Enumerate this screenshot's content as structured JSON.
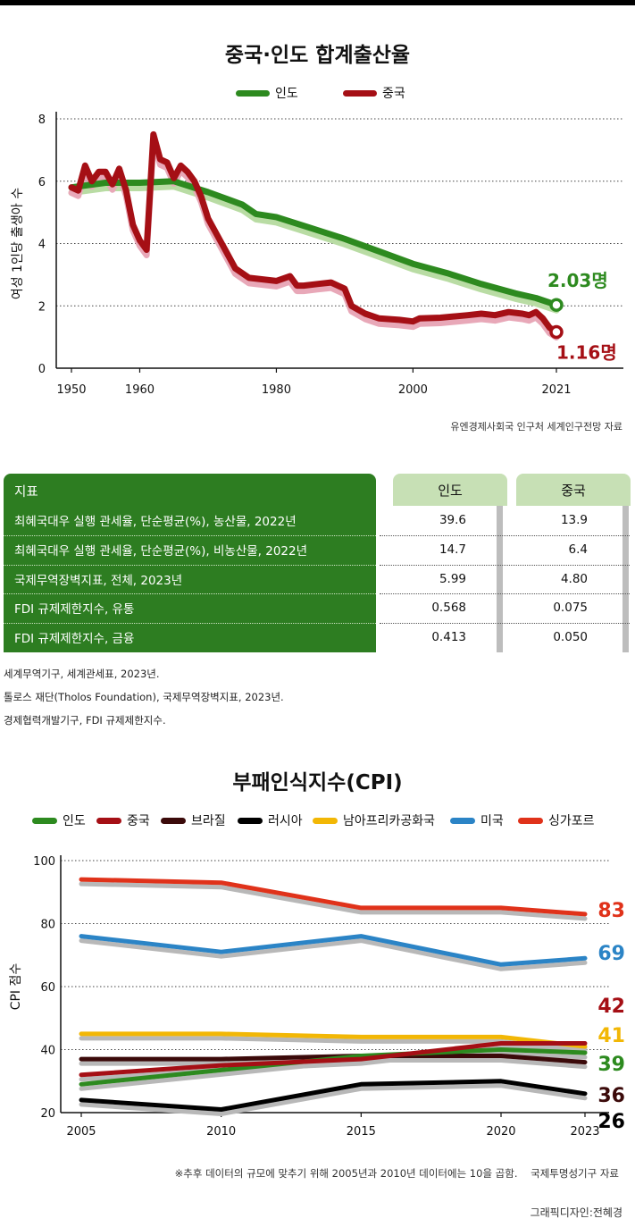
{
  "colors": {
    "india": "#2d8a1f",
    "china": "#a50f15",
    "brazil": "#3b0a0a",
    "russia": "#000000",
    "sa": "#f2b705",
    "usa": "#2b84c6",
    "singapore": "#e0321a",
    "table_green": "#2d7d21"
  },
  "chart1": {
    "title": "중국·인도 합계출산율",
    "ylabel": "여성 1인당 출생아 수",
    "legend": [
      "인도",
      "중국"
    ],
    "end_labels": {
      "india": "2.03명",
      "china": "1.16명"
    },
    "source": "유엔경제사회국 인구처 세계인구전망 자료"
  },
  "chart_data": [
    {
      "type": "line",
      "title": "중국·인도 합계출산율",
      "ylabel": "여성 1인당 출생아 수",
      "xlabel": "",
      "xticks": [
        1950,
        1960,
        1980,
        2000,
        2021
      ],
      "yticks": [
        0,
        2,
        4,
        6,
        8
      ],
      "xlim": [
        1948,
        2030
      ],
      "ylim": [
        0,
        8
      ],
      "grid": "horizontal dotted",
      "legend_position": "top",
      "series": [
        {
          "name": "인도",
          "x": [
            1950,
            1955,
            1960,
            1965,
            1970,
            1975,
            1977,
            1980,
            1985,
            1990,
            1995,
            2000,
            2005,
            2010,
            2015,
            2018,
            2021
          ],
          "values": [
            5.8,
            5.95,
            5.95,
            6.0,
            5.65,
            5.25,
            4.95,
            4.85,
            4.5,
            4.15,
            3.75,
            3.35,
            3.05,
            2.7,
            2.4,
            2.25,
            2.03
          ]
        },
        {
          "name": "중국",
          "x": [
            1950,
            1951,
            1952,
            1953,
            1954,
            1955,
            1956,
            1957,
            1958,
            1959,
            1960,
            1961,
            1962,
            1963,
            1964,
            1965,
            1966,
            1967,
            1968,
            1969,
            1970,
            1972,
            1974,
            1976,
            1978,
            1980,
            1982,
            1983,
            1984,
            1986,
            1988,
            1990,
            1991,
            1993,
            1995,
            1998,
            2000,
            2001,
            2004,
            2008,
            2010,
            2012,
            2014,
            2016,
            2017,
            2018,
            2019,
            2020,
            2021
          ],
          "values": [
            5.8,
            5.7,
            6.5,
            6.0,
            6.3,
            6.3,
            5.9,
            6.4,
            5.7,
            4.6,
            4.1,
            3.8,
            7.5,
            6.7,
            6.6,
            6.1,
            6.5,
            6.3,
            6.0,
            5.5,
            4.8,
            4.0,
            3.2,
            2.9,
            2.85,
            2.8,
            2.95,
            2.65,
            2.65,
            2.7,
            2.75,
            2.55,
            2.0,
            1.75,
            1.6,
            1.55,
            1.5,
            1.6,
            1.62,
            1.7,
            1.75,
            1.7,
            1.8,
            1.75,
            1.7,
            1.8,
            1.6,
            1.3,
            1.16
          ]
        }
      ]
    },
    {
      "type": "line",
      "title": "부패인식지수(CPI)",
      "ylabel": "CPI 점수",
      "xlabel": "",
      "x": [
        2005,
        2010,
        2015,
        2020,
        2023
      ],
      "yticks": [
        20,
        40,
        60,
        80,
        100
      ],
      "ylim": [
        20,
        100
      ],
      "grid": "horizontal dotted",
      "legend_position": "top",
      "series": [
        {
          "name": "인도",
          "values": [
            29,
            33.5,
            38,
            40,
            39
          ]
        },
        {
          "name": "중국",
          "values": [
            32,
            35,
            37,
            42,
            42
          ]
        },
        {
          "name": "브라질",
          "values": [
            37,
            37,
            38,
            38,
            36
          ]
        },
        {
          "name": "러시아",
          "values": [
            24,
            21,
            29,
            30,
            26
          ]
        },
        {
          "name": "남아프리카공화국",
          "values": [
            45,
            45,
            44,
            44,
            41
          ]
        },
        {
          "name": "미국",
          "values": [
            76,
            71,
            76,
            67,
            69
          ]
        },
        {
          "name": "싱가포르",
          "values": [
            94,
            93,
            85,
            85,
            83
          ]
        }
      ]
    }
  ],
  "table": {
    "header": "지표",
    "col1": "인도",
    "col2": "중국",
    "rows": [
      {
        "label": "최혜국대우 실행 관세율, 단순평균(%), 농산물, 2022년",
        "india": "39.6",
        "china": "13.9"
      },
      {
        "label": "최혜국대우 실행 관세율, 단순평균(%), 비농산물, 2022년",
        "india": "14.7",
        "china": "6.4"
      },
      {
        "label": "국제무역장벽지표, 전체, 2023년",
        "india": "5.99",
        "china": "4.80"
      },
      {
        "label": "FDI 규제제한지수, 유통",
        "india": "0.568",
        "china": "0.075"
      },
      {
        "label": "FDI 규제제한지수, 금융",
        "india": "0.413",
        "china": "0.050"
      }
    ],
    "notes": [
      "세계무역기구, 세계관세표, 2023년.",
      "톨로스 재단(Tholos Foundation), 국제무역장벽지표, 2023년.",
      "경제협력개발기구, FDI 규제제한지수."
    ]
  },
  "chart2": {
    "title": "부패인식지수(CPI)",
    "ylabel": "CPI 점수",
    "legend": [
      "인도",
      "중국",
      "브라질",
      "러시아",
      "남아프리카공화국",
      "미국",
      "싱가포르"
    ],
    "end_labels": [
      "83",
      "69",
      "42",
      "41",
      "39",
      "36",
      "26"
    ],
    "footnote": "※추후 데이터의 규모에 맞추기 위해 2005년과 2010년 데이터에는 10을 곱함.",
    "source": "국제투명성기구 자료"
  },
  "credit": "그래픽디자인:전혜경"
}
